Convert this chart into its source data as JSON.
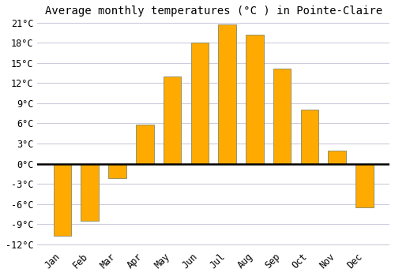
{
  "months": [
    "Jan",
    "Feb",
    "Mar",
    "Apr",
    "May",
    "Jun",
    "Jul",
    "Aug",
    "Sep",
    "Oct",
    "Nov",
    "Dec"
  ],
  "values": [
    -10.8,
    -8.5,
    -2.2,
    5.8,
    13.0,
    18.0,
    20.8,
    19.2,
    14.2,
    8.0,
    2.0,
    -6.5
  ],
  "bar_color": "#FFAA00",
  "bar_edge_color": "#888866",
  "title": "Average monthly temperatures (°C ) in Pointe-Claire",
  "ylim_min": -12,
  "ylim_max": 21,
  "yticks": [
    -12,
    -9,
    -6,
    -3,
    0,
    3,
    6,
    9,
    12,
    15,
    18,
    21
  ],
  "background_color": "#ffffff",
  "plot_bg_color": "#ffffff",
  "grid_color": "#ccccdd",
  "zero_line_color": "#000000",
  "title_fontsize": 10,
  "tick_fontsize": 8.5,
  "bar_width": 0.65
}
